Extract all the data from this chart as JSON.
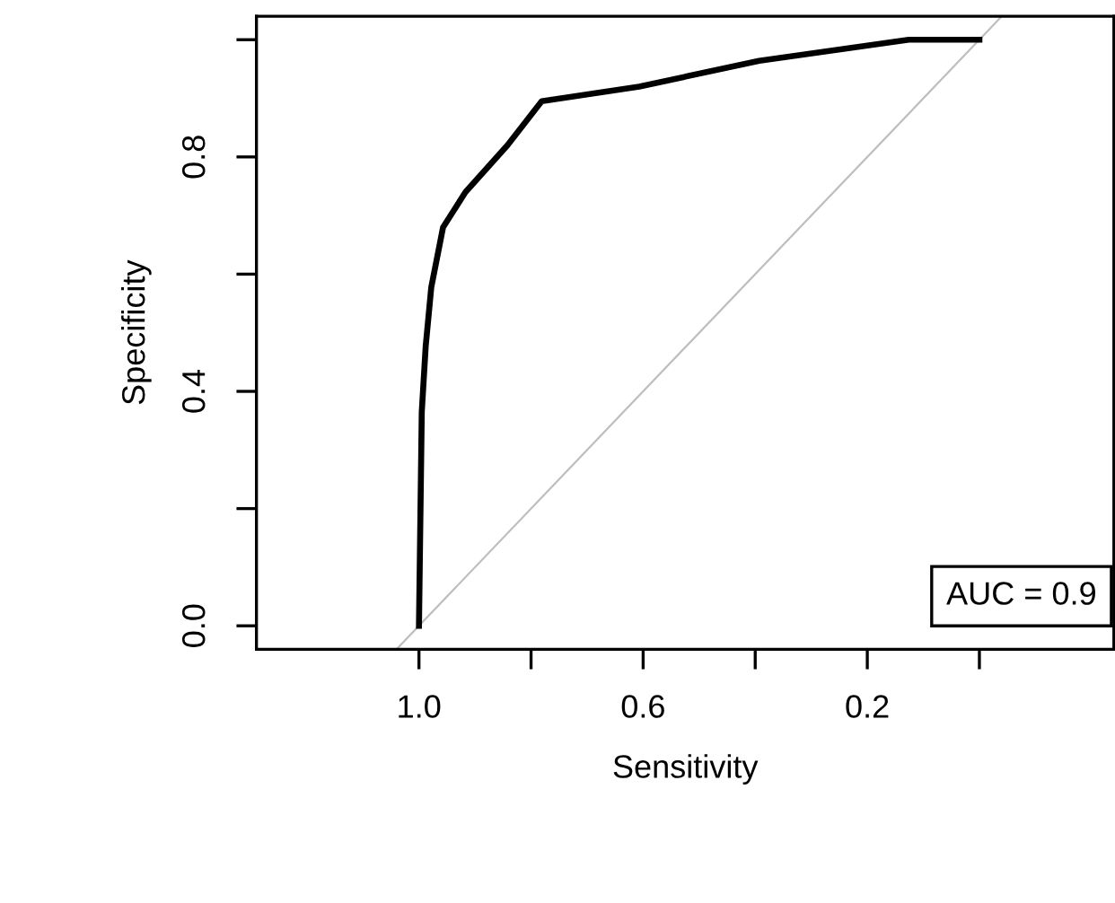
{
  "chart_data": {
    "type": "line",
    "xlabel": "Sensitivity",
    "ylabel": "Specificity",
    "xlim": [
      1.29,
      -0.24
    ],
    "ylim": [
      -0.04,
      1.04
    ],
    "xticks": [
      {
        "value": 1.0,
        "label": "1.0"
      },
      {
        "value": 0.8,
        "label": null
      },
      0.6,
      {
        "value": 0.4,
        "label": null
      },
      0.2,
      {
        "value": 0.0,
        "label": null
      }
    ],
    "yticks": [
      {
        "value": 0.0,
        "label": "0.0"
      },
      {
        "value": 0.2,
        "label": null
      },
      0.4,
      {
        "value": 0.6,
        "label": null
      },
      0.8,
      {
        "value": 1.0,
        "label": null
      }
    ],
    "grid": false,
    "legend": false,
    "marker": "none",
    "line_style": "solid",
    "series": [
      {
        "color": "#000000",
        "x": [
          1.0,
          0.995,
          0.988,
          0.978,
          0.957,
          0.917,
          0.842,
          0.781,
          0.607,
          0.393,
          0.126,
          0.0
        ],
        "values": [
          0.0,
          0.365,
          0.477,
          0.578,
          0.68,
          0.74,
          0.82,
          0.895,
          0.92,
          0.964,
          1.0,
          1.0
        ]
      },
      {
        "color": "#bebebe",
        "x": [
          1.04,
          -0.04
        ],
        "values": [
          -0.04,
          1.04
        ]
      }
    ],
    "annotations": [
      "AUC = 0.9"
    ]
  }
}
